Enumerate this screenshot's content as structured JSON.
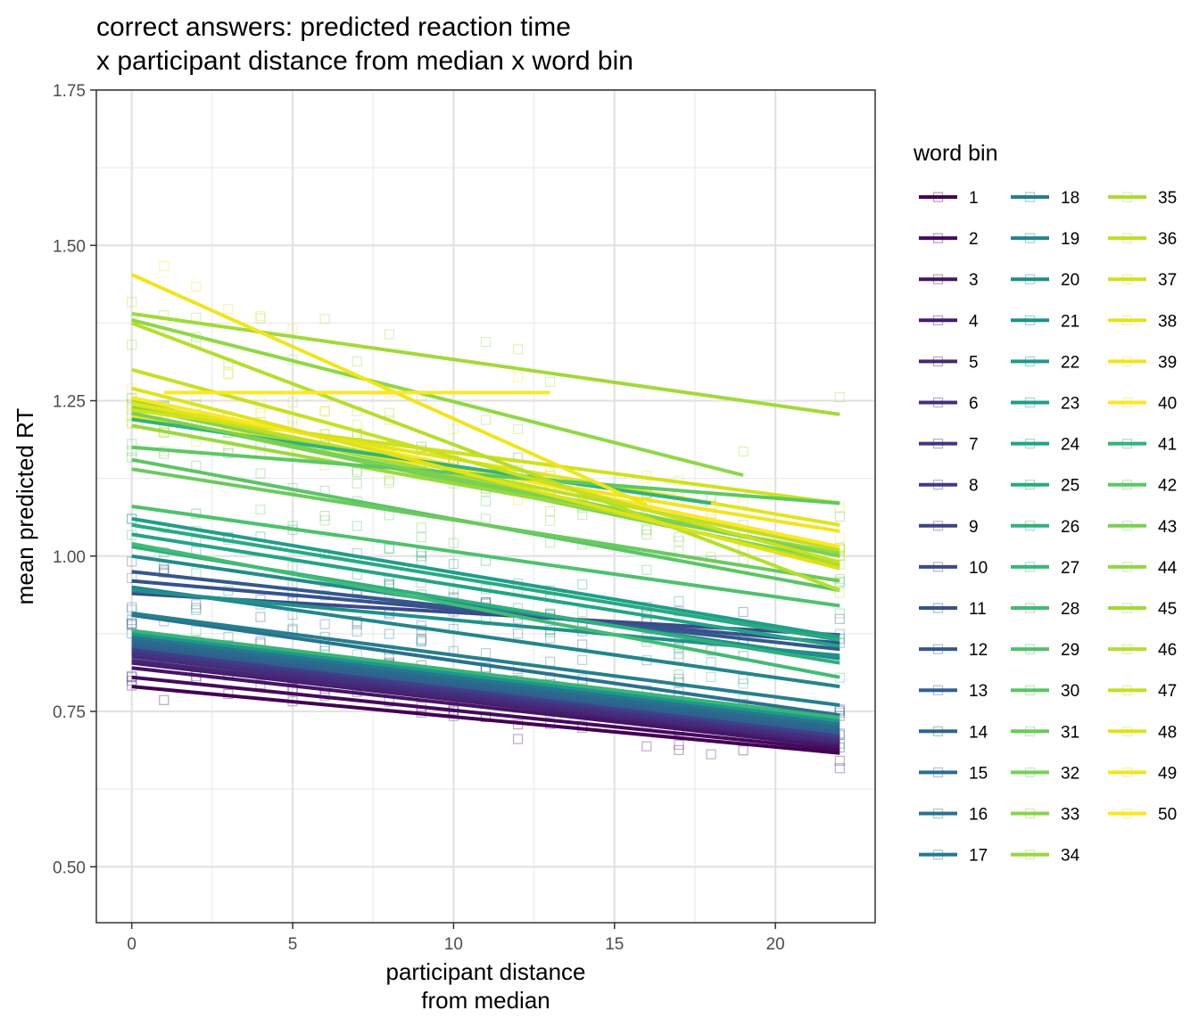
{
  "chart_data": {
    "type": "line",
    "title": [
      "correct answers: predicted reaction time",
      "x participant distance from median x word bin"
    ],
    "xlabel": [
      "participant distance",
      "from median"
    ],
    "ylabel": "mean predicted RT",
    "xlim": [
      -1.1,
      23.1
    ],
    "ylim": [
      0.41,
      1.75
    ],
    "x_ticks": [
      {
        "value": 0,
        "label": "0"
      },
      {
        "value": 5,
        "label": "5"
      },
      {
        "value": 10,
        "label": "10"
      },
      {
        "value": 15,
        "label": "15"
      },
      {
        "value": 20,
        "label": "20"
      }
    ],
    "y_ticks": [
      {
        "value": 0.5,
        "label": "0.50"
      },
      {
        "value": 0.75,
        "label": "0.75"
      },
      {
        "value": 1.0,
        "label": "1.00"
      },
      {
        "value": 1.25,
        "label": "1.25"
      },
      {
        "value": 1.5,
        "label": "1.50"
      },
      {
        "value": 1.75,
        "label": "1.75"
      }
    ],
    "grid": true,
    "legend": {
      "title": "word bin",
      "position": "right",
      "columns": 3
    },
    "point_shape": "open-square",
    "colormap": "viridis",
    "series": [
      {
        "name": "1",
        "color": "#440154",
        "x": [
          0,
          22
        ],
        "y": [
          0.79,
          0.683
        ]
      },
      {
        "name": "2",
        "color": "#450a5c",
        "x": [
          0,
          22
        ],
        "y": [
          0.805,
          0.688
        ]
      },
      {
        "name": "3",
        "color": "#461465",
        "x": [
          0,
          22
        ],
        "y": [
          0.82,
          0.693
        ]
      },
      {
        "name": "4",
        "color": "#471c6d",
        "x": [
          0,
          22
        ],
        "y": [
          0.828,
          0.697
        ]
      },
      {
        "name": "5",
        "color": "#472575",
        "x": [
          0,
          22
        ],
        "y": [
          0.832,
          0.7
        ]
      },
      {
        "name": "6",
        "color": "#462c7b",
        "x": [
          0,
          22
        ],
        "y": [
          0.838,
          0.703
        ]
      },
      {
        "name": "7",
        "color": "#443381",
        "x": [
          0,
          22
        ],
        "y": [
          0.843,
          0.707
        ]
      },
      {
        "name": "8",
        "color": "#413b85",
        "x": [
          0,
          22
        ],
        "y": [
          0.848,
          0.71
        ]
      },
      {
        "name": "9",
        "color": "#3e4389",
        "x": [
          0,
          22
        ],
        "y": [
          0.852,
          0.712
        ]
      },
      {
        "name": "10",
        "color": "#3b4a8b",
        "x": [
          0,
          22
        ],
        "y": [
          0.94,
          0.873
        ]
      },
      {
        "name": "11",
        "color": "#37518d",
        "x": [
          0,
          22
        ],
        "y": [
          0.96,
          0.86
        ]
      },
      {
        "name": "12",
        "color": "#34588d",
        "x": [
          0,
          22
        ],
        "y": [
          0.975,
          0.85
        ]
      },
      {
        "name": "13",
        "color": "#315f8e",
        "x": [
          0,
          22
        ],
        "y": [
          0.855,
          0.716
        ]
      },
      {
        "name": "14",
        "color": "#2e658e",
        "x": [
          0,
          22
        ],
        "y": [
          0.86,
          0.72
        ]
      },
      {
        "name": "15",
        "color": "#2b6c8e",
        "x": [
          0,
          22
        ],
        "y": [
          0.865,
          0.725
        ]
      },
      {
        "name": "16",
        "color": "#29728e",
        "x": [
          0,
          22
        ],
        "y": [
          0.905,
          0.744
        ]
      },
      {
        "name": "17",
        "color": "#27788e",
        "x": [
          0,
          22
        ],
        "y": [
          0.87,
          0.73
        ]
      },
      {
        "name": "18",
        "color": "#257f8e",
        "x": [
          0,
          22
        ],
        "y": [
          0.908,
          0.76
        ]
      },
      {
        "name": "19",
        "color": "#23858d",
        "x": [
          0,
          22
        ],
        "y": [
          0.95,
          0.79
        ]
      },
      {
        "name": "20",
        "color": "#218b8c",
        "x": [
          0,
          22
        ],
        "y": [
          1.0,
          0.835
        ]
      },
      {
        "name": "21",
        "color": "#1f918b",
        "x": [
          0,
          22
        ],
        "y": [
          0.945,
          0.84
        ]
      },
      {
        "name": "22",
        "color": "#1e988a",
        "x": [
          0,
          22
        ],
        "y": [
          0.875,
          0.735
        ]
      },
      {
        "name": "23",
        "color": "#1f9e88",
        "x": [
          0,
          22
        ],
        "y": [
          1.06,
          0.87
        ]
      },
      {
        "name": "24",
        "color": "#22a485",
        "x": [
          0,
          22
        ],
        "y": [
          1.035,
          0.855
        ]
      },
      {
        "name": "25",
        "color": "#27aa82",
        "x": [
          0,
          22
        ],
        "y": [
          1.05,
          0.865
        ]
      },
      {
        "name": "26",
        "color": "#2fb07e",
        "x": [
          0,
          22
        ],
        "y": [
          1.015,
          0.828
        ]
      },
      {
        "name": "27",
        "color": "#38b679",
        "x": [
          0,
          22
        ],
        "y": [
          0.88,
          0.74
        ]
      },
      {
        "name": "28",
        "color": "#42bb74",
        "x": [
          0,
          22
        ],
        "y": [
          1.02,
          0.805
        ]
      },
      {
        "name": "29",
        "color": "#4ec16d",
        "x": [
          0,
          22
        ],
        "y": [
          1.08,
          0.92
        ]
      },
      {
        "name": "30",
        "color": "#5bc566",
        "x": [
          0,
          22
        ],
        "y": [
          1.155,
          0.945
        ]
      },
      {
        "name": "31",
        "color": "#6aca5d",
        "x": [
          0,
          22
        ],
        "y": [
          1.14,
          0.96
        ]
      },
      {
        "name": "32",
        "color": "#79d054",
        "x": [
          0,
          22
        ],
        "y": [
          1.23,
          0.99
        ]
      },
      {
        "name": "33",
        "color": "#89d44a",
        "x": [
          0,
          22
        ],
        "y": [
          1.24,
          1.0
        ]
      },
      {
        "name": "34",
        "color": "#9ad83f",
        "x": [
          0,
          22
        ],
        "y": [
          1.21,
          1.005
        ]
      },
      {
        "name": "35",
        "color": "#acdc30",
        "x": [
          0,
          22
        ],
        "y": [
          1.25,
          0.985
        ]
      },
      {
        "name": "36",
        "color": "#bede25",
        "x": [
          0,
          22
        ],
        "y": [
          1.245,
          1.01
        ]
      },
      {
        "name": "37",
        "color": "#d0e11c",
        "x": [
          0,
          22
        ],
        "y": [
          1.235,
          1.085
        ]
      },
      {
        "name": "38",
        "color": "#e2e41b",
        "x": [
          0,
          22
        ],
        "y": [
          1.245,
          1.05
        ]
      },
      {
        "name": "39",
        "color": "#f1e51d",
        "x": [
          0,
          22
        ],
        "y": [
          1.225,
          1.04
        ]
      },
      {
        "name": "40",
        "color": "#fde725",
        "x": [
          0,
          22
        ],
        "y": [
          1.255,
          1.015
        ]
      },
      {
        "name": "41",
        "color": "#2fb47c",
        "x": [
          0,
          18
        ],
        "y": [
          1.22,
          1.085
        ]
      },
      {
        "name": "42",
        "color": "#5cc863",
        "x": [
          0,
          22
        ],
        "y": [
          1.175,
          1.085
        ]
      },
      {
        "name": "43",
        "color": "#7ad151",
        "x": [
          0,
          22
        ],
        "y": [
          1.23,
          1.0
        ]
      },
      {
        "name": "44",
        "color": "#8fd744",
        "x": [
          0,
          19
        ],
        "y": [
          1.38,
          1.13
        ]
      },
      {
        "name": "45",
        "color": "#a0da39",
        "x": [
          0,
          22
        ],
        "y": [
          1.39,
          1.228
        ]
      },
      {
        "name": "46",
        "color": "#b5de2b",
        "x": [
          0,
          22
        ],
        "y": [
          1.375,
          0.945
        ]
      },
      {
        "name": "47",
        "color": "#c7e020",
        "x": [
          0,
          22
        ],
        "y": [
          1.3,
          0.99
        ]
      },
      {
        "name": "48",
        "color": "#dde318",
        "x": [
          0,
          22
        ],
        "y": [
          1.27,
          0.98
        ]
      },
      {
        "name": "49",
        "color": "#f0e51c",
        "x": [
          0,
          16
        ],
        "y": [
          1.453,
          1.082
        ]
      },
      {
        "name": "50",
        "color": "#fde725",
        "x": [
          1,
          13
        ],
        "y": [
          1.263,
          1.263
        ]
      }
    ]
  }
}
